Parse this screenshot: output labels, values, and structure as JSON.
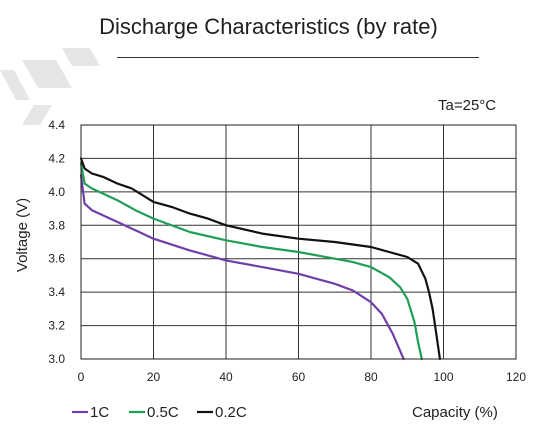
{
  "chart_data": {
    "type": "line",
    "title": "Discharge Characteristics (by rate)",
    "xlabel": "Capacity (%)",
    "ylabel": "Voltage (V)",
    "xlim": [
      0,
      120
    ],
    "ylim": [
      3.0,
      4.4
    ],
    "xticks": [
      "0",
      "20",
      "40",
      "60",
      "80",
      "100",
      "120"
    ],
    "yticks": [
      "3.0",
      "3.2",
      "3.4",
      "3.6",
      "3.8",
      "4.0",
      "4.2",
      "4.4"
    ],
    "grid": true,
    "legend_position": "bottom-left",
    "annotation": "Ta=25°C",
    "series": [
      {
        "name": "1C",
        "color": "#6f3fa8",
        "x": [
          0,
          1,
          3,
          6,
          10,
          15,
          20,
          30,
          40,
          50,
          60,
          70,
          75,
          80,
          83,
          86,
          88,
          89
        ],
        "y": [
          4.1,
          3.93,
          3.89,
          3.86,
          3.82,
          3.77,
          3.72,
          3.65,
          3.59,
          3.55,
          3.51,
          3.45,
          3.41,
          3.34,
          3.27,
          3.15,
          3.05,
          3.0
        ]
      },
      {
        "name": "0.5C",
        "color": "#1f9e55",
        "x": [
          0,
          1,
          3,
          6,
          10,
          15,
          20,
          30,
          40,
          50,
          60,
          70,
          75,
          80,
          85,
          88,
          90,
          92,
          93,
          94
        ],
        "y": [
          4.17,
          4.05,
          4.02,
          3.99,
          3.95,
          3.89,
          3.84,
          3.76,
          3.71,
          3.67,
          3.64,
          3.6,
          3.58,
          3.55,
          3.49,
          3.43,
          3.36,
          3.22,
          3.1,
          3.0
        ]
      },
      {
        "name": "0.2C",
        "color": "#111111",
        "x": [
          0,
          1,
          3,
          6,
          10,
          14,
          17,
          20,
          25,
          30,
          35,
          40,
          50,
          60,
          70,
          80,
          85,
          90,
          93,
          95,
          96,
          97,
          98,
          99
        ],
        "y": [
          4.2,
          4.14,
          4.11,
          4.09,
          4.05,
          4.02,
          3.98,
          3.94,
          3.91,
          3.87,
          3.84,
          3.8,
          3.75,
          3.72,
          3.7,
          3.67,
          3.64,
          3.61,
          3.57,
          3.48,
          3.4,
          3.3,
          3.15,
          3.0
        ]
      }
    ]
  }
}
